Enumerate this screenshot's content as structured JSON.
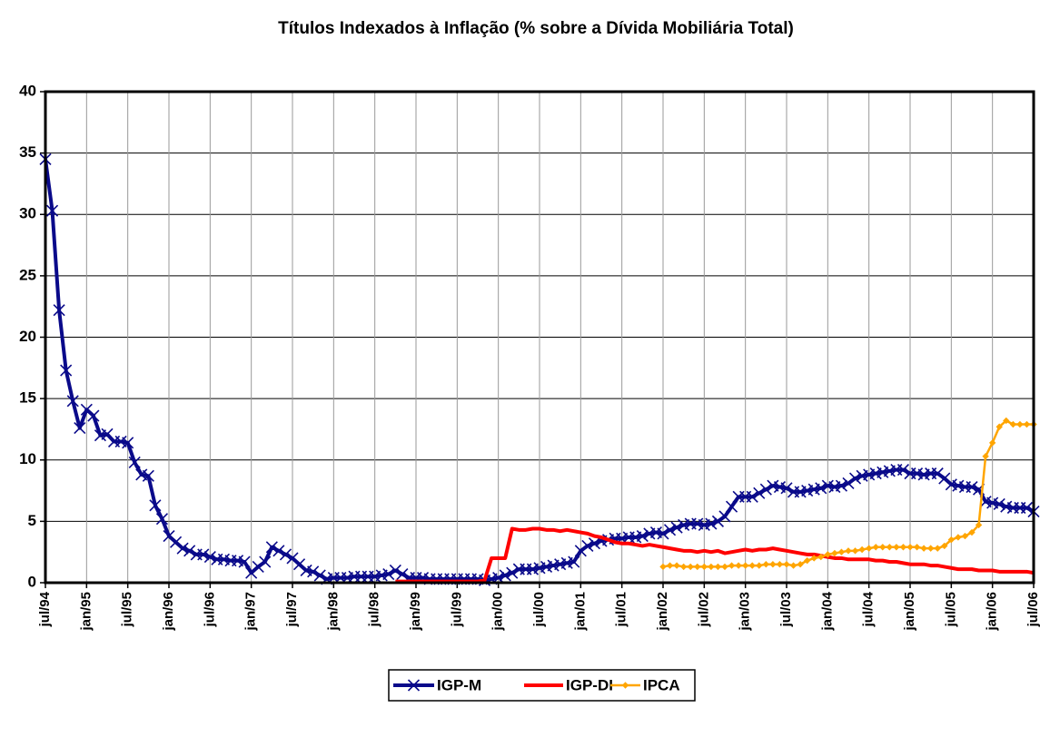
{
  "chart_data": {
    "type": "line",
    "title": "Títulos Indexados à Inflação (% sobre a Dívida Mobiliária Total)",
    "categories": [
      "jul/94",
      null,
      null,
      null,
      null,
      null,
      "jan/95",
      null,
      null,
      null,
      null,
      null,
      "jul/95",
      null,
      null,
      null,
      null,
      null,
      "jan/96",
      null,
      null,
      null,
      null,
      null,
      "jul/96",
      null,
      null,
      null,
      null,
      null,
      "jan/97",
      null,
      null,
      null,
      null,
      null,
      "jul/97",
      null,
      null,
      null,
      null,
      null,
      "jan/98",
      null,
      null,
      null,
      null,
      null,
      "jul/98",
      null,
      null,
      null,
      null,
      null,
      "jan/99",
      null,
      null,
      null,
      null,
      null,
      "jul/99",
      null,
      null,
      null,
      null,
      null,
      "jan/00",
      null,
      null,
      null,
      null,
      null,
      "jul/00",
      null,
      null,
      null,
      null,
      null,
      "jan/01",
      null,
      null,
      null,
      null,
      null,
      "jul/01",
      null,
      null,
      null,
      null,
      null,
      "jan/02",
      null,
      null,
      null,
      null,
      null,
      "jul/02",
      null,
      null,
      null,
      null,
      null,
      "jan/03",
      null,
      null,
      null,
      null,
      null,
      "jul/03",
      null,
      null,
      null,
      null,
      null,
      "jan/04",
      null,
      null,
      null,
      null,
      null,
      "jul/04",
      null,
      null,
      null,
      null,
      null,
      "jan/05",
      null,
      null,
      null,
      null,
      null,
      "jul/05",
      null,
      null,
      null,
      null,
      null,
      "jan/06",
      null,
      null,
      null,
      null,
      null,
      "jul/06"
    ],
    "series": [
      {
        "name": "IGP-M",
        "color": "#0a0a8a",
        "marker": "x",
        "values": [
          34.5,
          30.3,
          22.2,
          17.3,
          14.8,
          12.6,
          14.1,
          13.6,
          12.0,
          12.1,
          11.5,
          11.5,
          11.4,
          9.8,
          8.8,
          8.7,
          6.3,
          5.2,
          3.8,
          3.3,
          2.8,
          2.6,
          2.3,
          2.3,
          2.1,
          1.9,
          1.9,
          1.8,
          1.8,
          1.7,
          0.8,
          1.3,
          1.7,
          2.9,
          2.6,
          2.3,
          2.0,
          1.5,
          1.0,
          0.9,
          0.6,
          0.3,
          0.4,
          0.4,
          0.4,
          0.5,
          0.5,
          0.5,
          0.5,
          0.6,
          0.7,
          1.0,
          0.7,
          0.4,
          0.4,
          0.4,
          0.3,
          0.3,
          0.3,
          0.3,
          0.3,
          0.3,
          0.3,
          0.3,
          0.2,
          0.3,
          0.4,
          0.6,
          0.8,
          1.1,
          1.1,
          1.1,
          1.2,
          1.3,
          1.4,
          1.5,
          1.6,
          1.7,
          2.6,
          3.0,
          3.2,
          3.4,
          3.5,
          3.6,
          3.6,
          3.7,
          3.7,
          3.8,
          4.0,
          4.1,
          4.0,
          4.3,
          4.5,
          4.7,
          4.8,
          4.8,
          4.7,
          4.8,
          5.0,
          5.4,
          6.2,
          7.0,
          7.0,
          7.0,
          7.3,
          7.6,
          7.9,
          7.8,
          7.7,
          7.4,
          7.4,
          7.5,
          7.6,
          7.7,
          7.9,
          7.8,
          7.9,
          8.1,
          8.5,
          8.7,
          8.8,
          8.9,
          9.0,
          9.1,
          9.2,
          9.2,
          8.9,
          8.9,
          8.8,
          8.9,
          8.9,
          8.5,
          8.0,
          7.9,
          7.8,
          7.8,
          7.6,
          6.6,
          6.5,
          6.4,
          6.2,
          6.1,
          6.1,
          6.1,
          5.8
        ]
      },
      {
        "name": "IGP-DI",
        "color": "#ff0000",
        "marker": "none",
        "values": [
          null,
          null,
          null,
          null,
          null,
          null,
          null,
          null,
          null,
          null,
          null,
          null,
          null,
          null,
          null,
          null,
          null,
          null,
          null,
          null,
          null,
          null,
          null,
          null,
          null,
          null,
          null,
          null,
          null,
          null,
          null,
          null,
          null,
          null,
          null,
          null,
          null,
          null,
          null,
          null,
          null,
          null,
          null,
          null,
          null,
          null,
          null,
          null,
          null,
          null,
          null,
          0.1,
          0.1,
          0.1,
          0.1,
          0.1,
          0.1,
          0.1,
          0.1,
          0.1,
          0.1,
          0.1,
          0.1,
          0.1,
          0.2,
          2.0,
          2.0,
          2.0,
          4.4,
          4.3,
          4.3,
          4.4,
          4.4,
          4.3,
          4.3,
          4.2,
          4.3,
          4.2,
          4.1,
          4.0,
          3.8,
          3.7,
          3.5,
          3.3,
          3.2,
          3.2,
          3.1,
          3.0,
          3.1,
          3.0,
          2.9,
          2.8,
          2.7,
          2.6,
          2.6,
          2.5,
          2.6,
          2.5,
          2.6,
          2.4,
          2.5,
          2.6,
          2.7,
          2.6,
          2.7,
          2.7,
          2.8,
          2.7,
          2.6,
          2.5,
          2.4,
          2.3,
          2.3,
          2.2,
          2.1,
          2.0,
          2.0,
          1.9,
          1.9,
          1.9,
          1.9,
          1.8,
          1.8,
          1.7,
          1.7,
          1.6,
          1.5,
          1.5,
          1.5,
          1.4,
          1.4,
          1.3,
          1.2,
          1.1,
          1.1,
          1.1,
          1.0,
          1.0,
          1.0,
          0.9,
          0.9,
          0.9,
          0.9,
          0.9,
          0.8
        ]
      },
      {
        "name": "IPCA",
        "color": "#ffa500",
        "marker": "diamond",
        "values": [
          null,
          null,
          null,
          null,
          null,
          null,
          null,
          null,
          null,
          null,
          null,
          null,
          null,
          null,
          null,
          null,
          null,
          null,
          null,
          null,
          null,
          null,
          null,
          null,
          null,
          null,
          null,
          null,
          null,
          null,
          null,
          null,
          null,
          null,
          null,
          null,
          null,
          null,
          null,
          null,
          null,
          null,
          null,
          null,
          null,
          null,
          null,
          null,
          null,
          null,
          null,
          null,
          null,
          null,
          null,
          null,
          null,
          null,
          null,
          null,
          null,
          null,
          null,
          null,
          null,
          null,
          null,
          null,
          null,
          null,
          null,
          null,
          null,
          null,
          null,
          null,
          null,
          null,
          null,
          null,
          null,
          null,
          null,
          null,
          null,
          null,
          null,
          null,
          null,
          null,
          1.3,
          1.4,
          1.4,
          1.3,
          1.3,
          1.3,
          1.3,
          1.3,
          1.3,
          1.3,
          1.4,
          1.4,
          1.4,
          1.4,
          1.4,
          1.5,
          1.5,
          1.5,
          1.5,
          1.4,
          1.5,
          1.8,
          2.0,
          2.1,
          2.3,
          2.4,
          2.5,
          2.6,
          2.6,
          2.7,
          2.8,
          2.9,
          2.9,
          2.9,
          2.9,
          2.9,
          2.9,
          2.9,
          2.8,
          2.8,
          2.8,
          3.0,
          3.5,
          3.7,
          3.8,
          4.1,
          4.7,
          10.3,
          11.4,
          12.7,
          13.2,
          12.9,
          12.9,
          12.9,
          12.9
        ]
      }
    ],
    "ylim": [
      0,
      40
    ],
    "yticks": [
      0,
      5,
      10,
      15,
      20,
      25,
      30,
      35,
      40
    ],
    "grid": true,
    "legend": "bottom"
  }
}
